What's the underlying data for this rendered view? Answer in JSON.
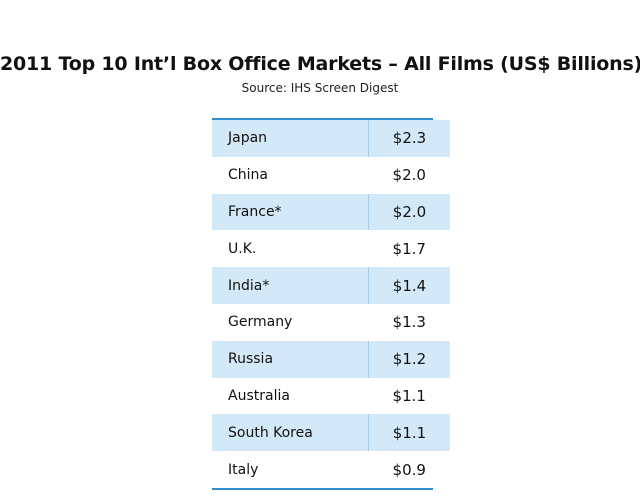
{
  "chart_data": {
    "type": "table",
    "title": "2011 Top 10 Int’l Box Office Markets – All Films (US$ Billions)",
    "subtitle": "Source: IHS Screen Digest",
    "rows": [
      {
        "market": "Japan",
        "value_label": "$2.3",
        "value": 2.3
      },
      {
        "market": "China",
        "value_label": "$2.0",
        "value": 2.0
      },
      {
        "market": "France*",
        "value_label": "$2.0",
        "value": 2.0
      },
      {
        "market": "U.K.",
        "value_label": "$1.7",
        "value": 1.7
      },
      {
        "market": "India*",
        "value_label": "$1.4",
        "value": 1.4
      },
      {
        "market": "Germany",
        "value_label": "$1.3",
        "value": 1.3
      },
      {
        "market": "Russia",
        "value_label": "$1.2",
        "value": 1.2
      },
      {
        "market": "Australia",
        "value_label": "$1.1",
        "value": 1.1
      },
      {
        "market": "South Korea",
        "value_label": "$1.1",
        "value": 1.1
      },
      {
        "market": "Italy",
        "value_label": "$0.9",
        "value": 0.9
      }
    ],
    "colors": {
      "accent_rule": "#2e8fcf",
      "shaded_row": "#d4e9f7",
      "plain_row": "#ffffff"
    }
  }
}
